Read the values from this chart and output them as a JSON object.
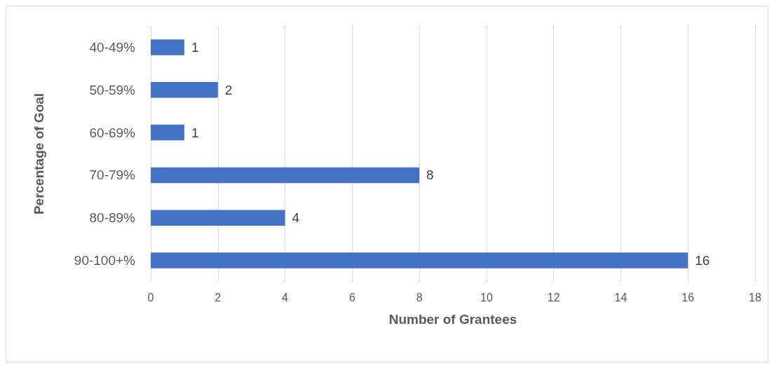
{
  "chart_data": {
    "type": "bar",
    "orientation": "horizontal",
    "xlabel": "Number of Grantees",
    "ylabel": "Percentage of Goal",
    "categories": [
      "40-49%",
      "50-59%",
      "60-69%",
      "70-79%",
      "80-89%",
      "90-100+%"
    ],
    "values": [
      1,
      2,
      1,
      8,
      4,
      16
    ],
    "color": "#4472c4",
    "xlim": [
      0,
      18
    ],
    "xticks": [
      0,
      2,
      4,
      6,
      8,
      10,
      12,
      14,
      16,
      18
    ],
    "grid": "x",
    "data_labels": true
  }
}
